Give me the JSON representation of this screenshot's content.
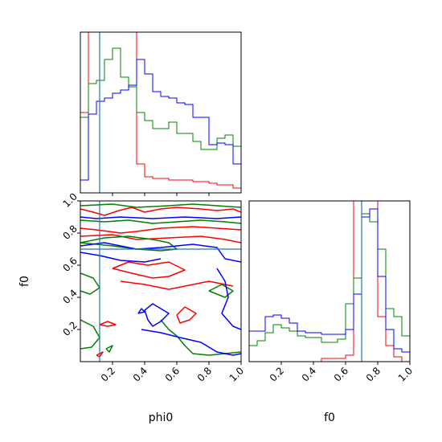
{
  "chart_data": {
    "type": "corner",
    "parameters": [
      "phi0",
      "f0"
    ],
    "xlabel": "phi0",
    "xlabel2": "f0",
    "ylabel": "f0",
    "colors": {
      "red": "#ff0000",
      "green": "#008000",
      "blue": "#0000ff",
      "truth": "#1f77b4"
    },
    "truth": {
      "phi0": 0.12,
      "f0": 0.7
    },
    "ticks": [
      "0.2",
      "0.4",
      "0.6",
      "0.8",
      "1.0"
    ],
    "ticks_phi0_top_hist": [
      0.2,
      0.4,
      0.6,
      0.8
    ],
    "ranges": {
      "phi0": [
        0.0,
        1.0
      ],
      "f0": [
        0.0,
        1.0
      ]
    },
    "hist_phi0": {
      "edges": [
        0.0,
        0.05,
        0.1,
        0.15,
        0.2,
        0.25,
        0.3,
        0.35,
        0.4,
        0.45,
        0.5,
        0.55,
        0.6,
        0.65,
        0.7,
        0.75,
        0.8,
        0.85,
        0.9,
        0.95,
        1.0
      ],
      "series": [
        {
          "color": "red",
          "values": [
            0.5,
            1.02,
            1.04,
            1.06,
            1.08,
            1.1,
            1.12,
            0.18,
            0.1,
            0.09,
            0.09,
            0.08,
            0.08,
            0.08,
            0.07,
            0.07,
            0.06,
            0.05,
            0.05,
            0.03
          ]
        },
        {
          "color": "green",
          "values": [
            0.47,
            0.68,
            0.7,
            0.83,
            0.9,
            0.72,
            0.66,
            0.5,
            0.45,
            0.4,
            0.4,
            0.44,
            0.37,
            0.37,
            0.32,
            0.27,
            0.27,
            0.34,
            0.36,
            0.29
          ]
        },
        {
          "color": "blue",
          "values": [
            0.08,
            0.49,
            0.57,
            0.59,
            0.62,
            0.64,
            0.67,
            0.83,
            0.74,
            0.63,
            0.6,
            0.59,
            0.56,
            0.55,
            0.47,
            0.47,
            0.3,
            0.31,
            0.3,
            0.18
          ]
        }
      ]
    },
    "hist_f0": {
      "edges": [
        0.0,
        0.05,
        0.1,
        0.15,
        0.2,
        0.25,
        0.3,
        0.35,
        0.4,
        0.45,
        0.5,
        0.55,
        0.6,
        0.65,
        0.7,
        0.75,
        0.8,
        0.85,
        0.9,
        0.95,
        1.0
      ],
      "series": [
        {
          "color": "red",
          "values": [
            0.0,
            0.0,
            0.0,
            0.0,
            0.0,
            0.0,
            0.0,
            0.0,
            0.0,
            0.02,
            0.02,
            0.02,
            0.04,
            1.05,
            1.1,
            1.1,
            0.28,
            0.1,
            0.03,
            0.0
          ]
        },
        {
          "color": "green",
          "values": [
            0.1,
            0.13,
            0.18,
            0.23,
            0.21,
            0.19,
            0.16,
            0.15,
            0.15,
            0.12,
            0.12,
            0.14,
            0.36,
            0.52,
            0.92,
            0.87,
            0.7,
            0.33,
            0.28,
            0.16
          ]
        },
        {
          "color": "blue",
          "values": [
            0.19,
            0.19,
            0.28,
            0.29,
            0.27,
            0.24,
            0.19,
            0.18,
            0.18,
            0.17,
            0.17,
            0.17,
            0.2,
            0.42,
            0.9,
            0.95,
            0.53,
            0.2,
            0.08,
            0.06
          ]
        }
      ]
    },
    "contours": [
      {
        "color": "red",
        "paths": [
          [
            [
              0.0,
              0.83
            ],
            [
              0.1,
              0.82
            ],
            [
              0.25,
              0.8
            ],
            [
              0.35,
              0.81
            ],
            [
              0.5,
              0.83
            ],
            [
              0.7,
              0.84
            ],
            [
              0.85,
              0.83
            ],
            [
              1.0,
              0.82
            ]
          ],
          [
            [
              0.0,
              0.78
            ],
            [
              0.2,
              0.79
            ],
            [
              0.35,
              0.76
            ],
            [
              0.55,
              0.77
            ],
            [
              0.75,
              0.78
            ],
            [
              0.9,
              0.76
            ],
            [
              1.0,
              0.74
            ]
          ],
          [
            [
              0.0,
              0.95
            ],
            [
              0.08,
              0.93
            ],
            [
              0.15,
              0.91
            ],
            [
              0.24,
              0.94
            ],
            [
              0.32,
              0.96
            ],
            [
              0.4,
              0.93
            ],
            [
              0.5,
              0.95
            ],
            [
              0.6,
              0.96
            ],
            [
              0.75,
              0.95
            ],
            [
              0.85,
              0.94
            ],
            [
              0.95,
              0.95
            ],
            [
              1.0,
              0.93
            ]
          ],
          [
            [
              0.2,
              0.58
            ],
            [
              0.3,
              0.62
            ],
            [
              0.42,
              0.6
            ],
            [
              0.55,
              0.62
            ],
            [
              0.65,
              0.57
            ],
            [
              0.55,
              0.53
            ],
            [
              0.45,
              0.52
            ],
            [
              0.32,
              0.55
            ],
            [
              0.2,
              0.58
            ]
          ],
          [
            [
              0.25,
              0.5
            ],
            [
              0.4,
              0.48
            ],
            [
              0.55,
              0.45
            ],
            [
              0.7,
              0.48
            ],
            [
              0.8,
              0.5
            ],
            [
              0.95,
              0.47
            ]
          ],
          [
            [
              0.12,
              0.23
            ],
            [
              0.17,
              0.25
            ],
            [
              0.22,
              0.23
            ],
            [
              0.17,
              0.22
            ],
            [
              0.12,
              0.23
            ]
          ],
          [
            [
              0.6,
              0.29
            ],
            [
              0.65,
              0.34
            ],
            [
              0.72,
              0.3
            ],
            [
              0.68,
              0.26
            ],
            [
              0.62,
              0.24
            ],
            [
              0.6,
              0.29
            ]
          ],
          [
            [
              0.1,
              0.04
            ],
            [
              0.14,
              0.06
            ],
            [
              0.12,
              0.03
            ],
            [
              0.1,
              0.04
            ]
          ]
        ]
      },
      {
        "color": "green",
        "paths": [
          [
            [
              0.0,
              0.88
            ],
            [
              0.15,
              0.87
            ],
            [
              0.3,
              0.88
            ],
            [
              0.45,
              0.86
            ],
            [
              0.6,
              0.87
            ],
            [
              0.75,
              0.88
            ],
            [
              0.9,
              0.87
            ],
            [
              1.0,
              0.86
            ]
          ],
          [
            [
              0.0,
              0.74
            ],
            [
              0.2,
              0.72
            ],
            [
              0.35,
              0.7
            ],
            [
              0.5,
              0.69
            ],
            [
              0.6,
              0.7
            ],
            [
              0.55,
              0.74
            ],
            [
              0.45,
              0.76
            ],
            [
              0.3,
              0.78
            ],
            [
              0.15,
              0.77
            ],
            [
              0.0,
              0.74
            ]
          ],
          [
            [
              0.0,
              0.97
            ],
            [
              0.2,
              0.98
            ],
            [
              0.35,
              0.96
            ],
            [
              0.55,
              0.97
            ],
            [
              0.7,
              0.98
            ],
            [
              0.85,
              0.97
            ],
            [
              1.0,
              0.96
            ]
          ],
          [
            [
              0.0,
              0.55
            ],
            [
              0.08,
              0.52
            ],
            [
              0.12,
              0.46
            ],
            [
              0.06,
              0.42
            ],
            [
              0.0,
              0.44
            ]
          ],
          [
            [
              0.0,
              0.26
            ],
            [
              0.08,
              0.22
            ],
            [
              0.12,
              0.15
            ],
            [
              0.07,
              0.09
            ],
            [
              0.0,
              0.08
            ]
          ],
          [
            [
              0.5,
              0.26
            ],
            [
              0.55,
              0.2
            ],
            [
              0.6,
              0.16
            ],
            [
              0.65,
              0.1
            ],
            [
              0.7,
              0.05
            ],
            [
              0.8,
              0.04
            ],
            [
              0.9,
              0.05
            ],
            [
              1.0,
              0.06
            ]
          ],
          [
            [
              0.8,
              0.44
            ],
            [
              0.88,
              0.48
            ],
            [
              0.95,
              0.44
            ],
            [
              0.9,
              0.4
            ],
            [
              0.8,
              0.44
            ]
          ],
          [
            [
              0.16,
              0.08
            ],
            [
              0.2,
              0.1
            ],
            [
              0.18,
              0.06
            ],
            [
              0.16,
              0.08
            ]
          ]
        ]
      },
      {
        "color": "blue",
        "paths": [
          [
            [
              0.0,
              0.9
            ],
            [
              0.1,
              0.89
            ],
            [
              0.25,
              0.9
            ],
            [
              0.45,
              0.89
            ],
            [
              0.65,
              0.9
            ],
            [
              0.85,
              0.89
            ],
            [
              1.0,
              0.9
            ]
          ],
          [
            [
              0.0,
              0.72
            ],
            [
              0.15,
              0.74
            ],
            [
              0.25,
              0.72
            ],
            [
              0.35,
              0.7
            ],
            [
              0.5,
              0.71
            ],
            [
              0.7,
              0.73
            ],
            [
              0.85,
              0.71
            ],
            [
              0.9,
              0.64
            ],
            [
              1.0,
              0.62
            ]
          ],
          [
            [
              0.0,
              0.68
            ],
            [
              0.12,
              0.66
            ],
            [
              0.25,
              0.63
            ],
            [
              0.4,
              0.62
            ],
            [
              0.5,
              0.64
            ]
          ],
          [
            [
              0.85,
              0.58
            ],
            [
              0.9,
              0.5
            ],
            [
              0.92,
              0.4
            ],
            [
              0.88,
              0.3
            ],
            [
              0.95,
              0.22
            ],
            [
              1.0,
              0.2
            ]
          ],
          [
            [
              0.4,
              0.32
            ],
            [
              0.45,
              0.36
            ],
            [
              0.5,
              0.33
            ],
            [
              0.55,
              0.3
            ],
            [
              0.5,
              0.25
            ],
            [
              0.45,
              0.22
            ],
            [
              0.42,
              0.26
            ],
            [
              0.4,
              0.32
            ]
          ],
          [
            [
              0.38,
              0.2
            ],
            [
              0.5,
              0.18
            ],
            [
              0.62,
              0.15
            ],
            [
              0.75,
              0.12
            ],
            [
              0.85,
              0.06
            ],
            [
              0.95,
              0.04
            ],
            [
              1.0,
              0.05
            ]
          ],
          [
            [
              0.36,
              0.3
            ],
            [
              0.38,
              0.33
            ],
            [
              0.4,
              0.31
            ],
            [
              0.36,
              0.3
            ]
          ]
        ]
      }
    ]
  }
}
